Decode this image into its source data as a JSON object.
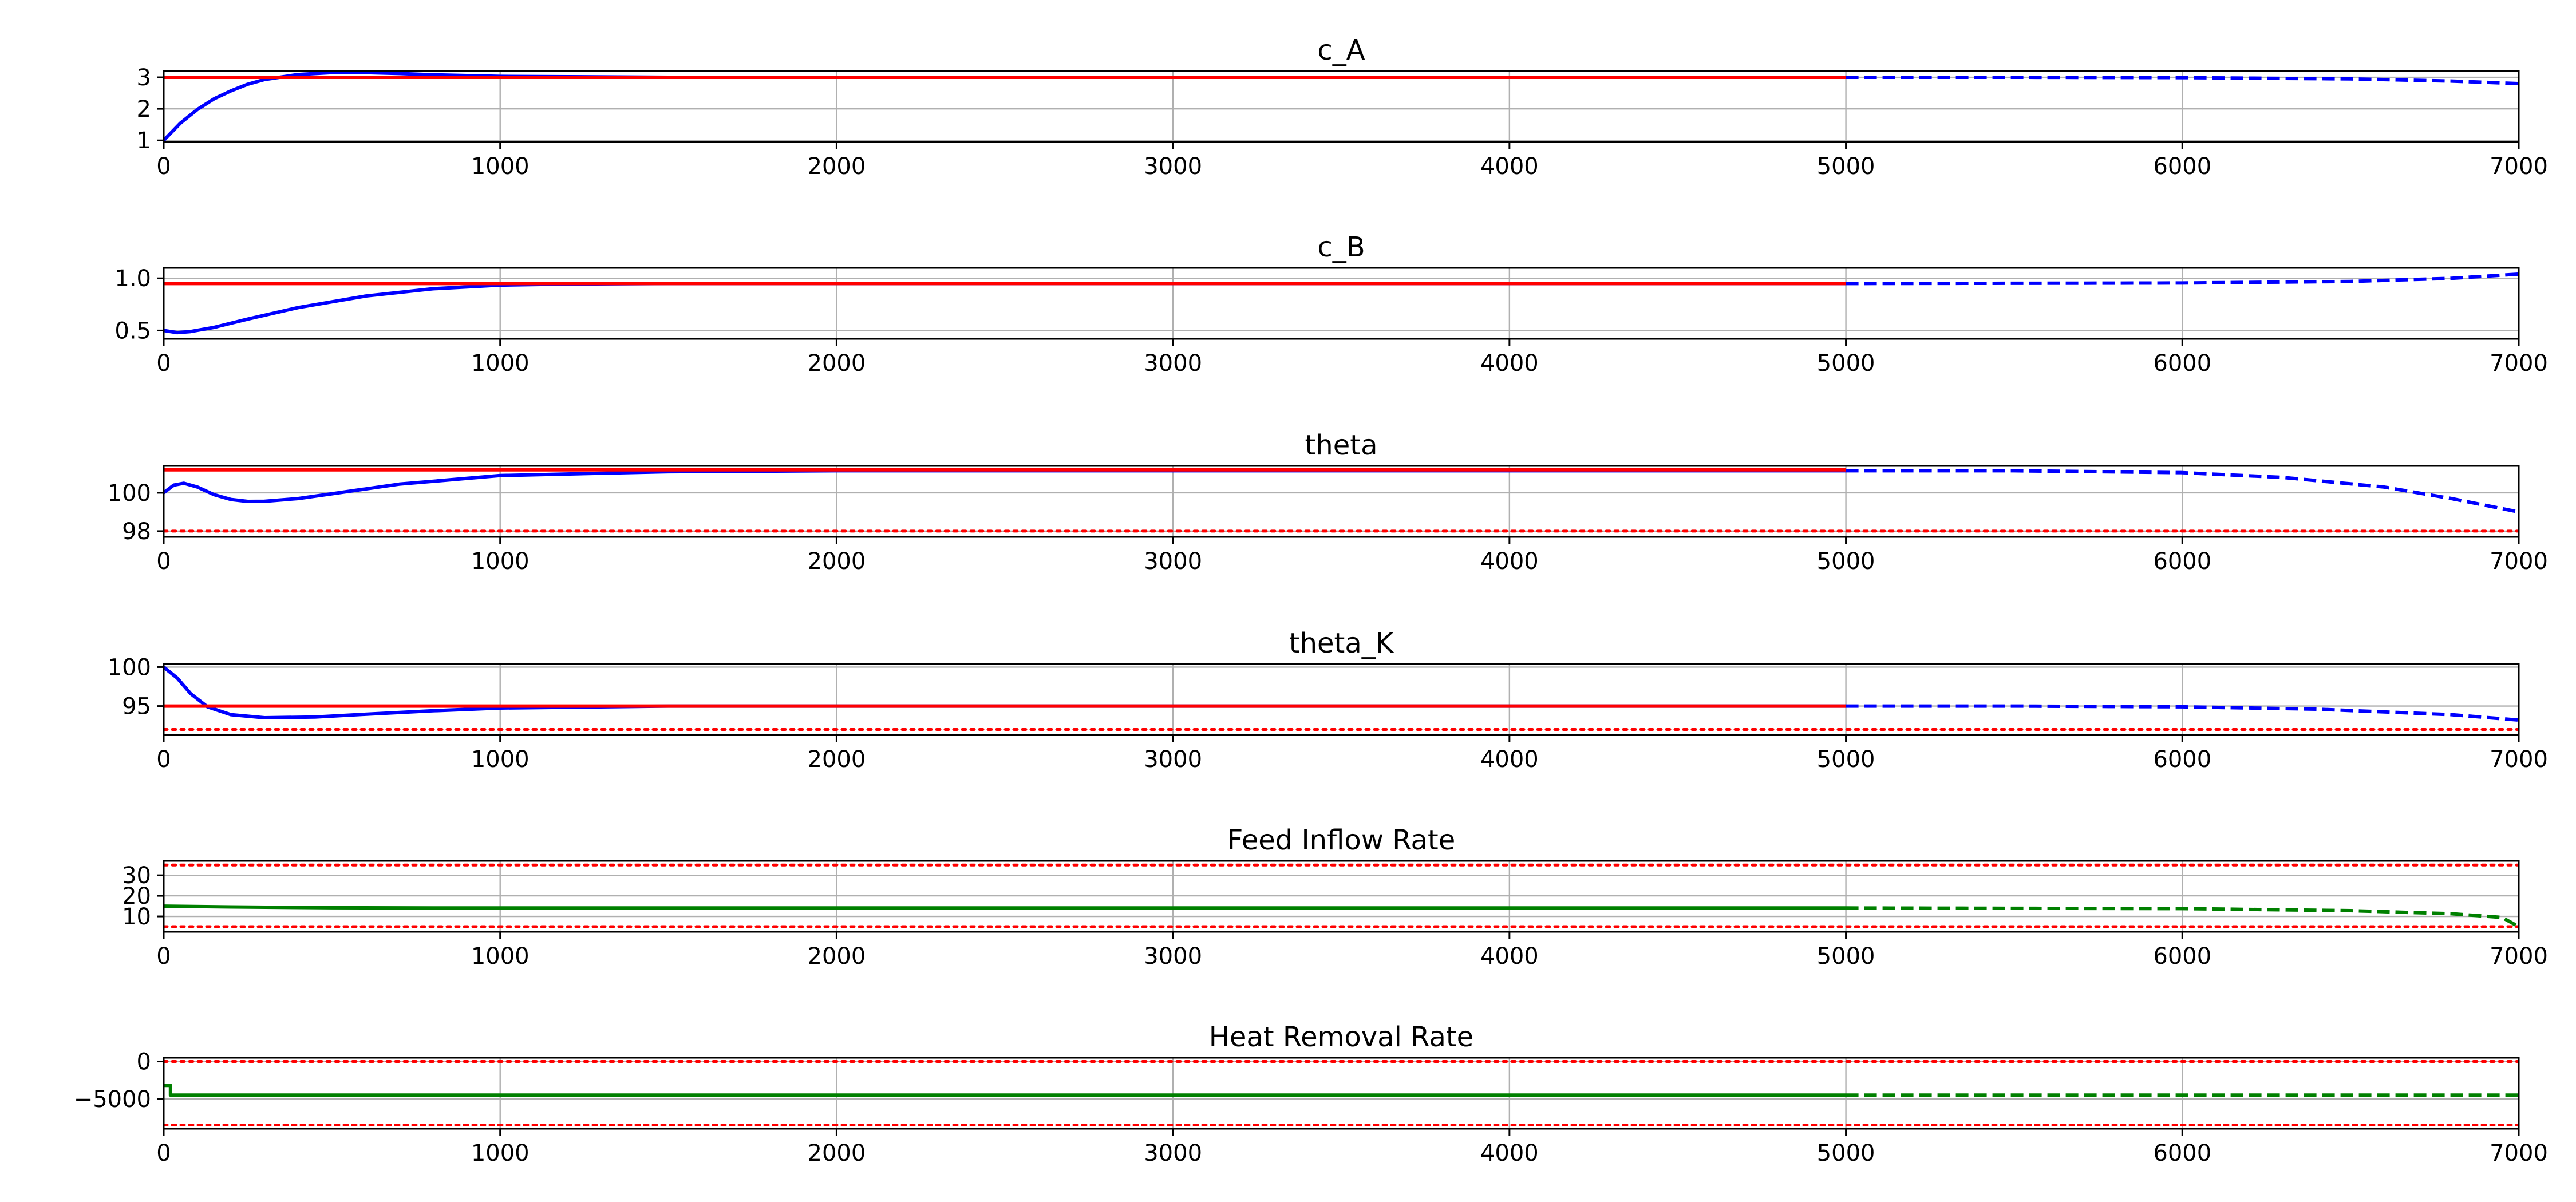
{
  "colors": {
    "state": "#0000ff",
    "input": "#008000",
    "setpoint": "#ff0000",
    "bound": "#ff0000",
    "grid": "#b0b0b0",
    "axes": "#000000"
  },
  "chart_data": [
    {
      "type": "line",
      "title": "c_A",
      "xlim": [
        0,
        7000
      ],
      "ylim": [
        0.95,
        3.2
      ],
      "xticks": [
        0,
        1000,
        2000,
        3000,
        4000,
        5000,
        6000,
        7000
      ],
      "xtick_labels": [
        "0",
        "1000",
        "2000",
        "3000",
        "4000",
        "5000",
        "6000",
        "7000"
      ],
      "yticks": [
        1,
        2,
        3
      ],
      "ytick_labels": [
        "1",
        "2",
        "3"
      ],
      "grid": true,
      "series": [
        {
          "role": "state",
          "style": "solid",
          "x": [
            0,
            50,
            100,
            150,
            200,
            250,
            300,
            400,
            500,
            600,
            700,
            800,
            1000,
            1500,
            2000,
            5000
          ],
          "y": [
            1.0,
            1.55,
            1.98,
            2.32,
            2.57,
            2.78,
            2.93,
            3.09,
            3.15,
            3.15,
            3.12,
            3.08,
            3.03,
            3.0,
            3.0,
            3.0
          ]
        },
        {
          "role": "state",
          "style": "dashed",
          "x": [
            5000,
            5500,
            6000,
            6500,
            6800,
            7000
          ],
          "y": [
            3.0,
            3.0,
            2.99,
            2.95,
            2.88,
            2.8
          ]
        },
        {
          "role": "setpoint",
          "style": "solid",
          "x": [
            0,
            5000
          ],
          "y": [
            3.0,
            3.0
          ]
        }
      ]
    },
    {
      "type": "line",
      "title": "c_B",
      "xlim": [
        0,
        7000
      ],
      "ylim": [
        0.42,
        1.1
      ],
      "xticks": [
        0,
        1000,
        2000,
        3000,
        4000,
        5000,
        6000,
        7000
      ],
      "xtick_labels": [
        "0",
        "1000",
        "2000",
        "3000",
        "4000",
        "5000",
        "6000",
        "7000"
      ],
      "yticks": [
        0.5,
        1.0
      ],
      "ytick_labels": [
        "0.5",
        "1.0"
      ],
      "grid": true,
      "series": [
        {
          "role": "state",
          "style": "solid",
          "x": [
            0,
            40,
            80,
            150,
            250,
            400,
            600,
            800,
            1000,
            1200,
            1500,
            2000,
            5000
          ],
          "y": [
            0.5,
            0.48,
            0.49,
            0.53,
            0.61,
            0.72,
            0.83,
            0.9,
            0.935,
            0.945,
            0.95,
            0.95,
            0.95
          ]
        },
        {
          "role": "state",
          "style": "dashed",
          "x": [
            5000,
            6000,
            6500,
            6800,
            7000
          ],
          "y": [
            0.95,
            0.955,
            0.97,
            1.0,
            1.04
          ]
        },
        {
          "role": "setpoint",
          "style": "solid",
          "x": [
            0,
            5000
          ],
          "y": [
            0.95,
            0.95
          ]
        }
      ]
    },
    {
      "type": "line",
      "title": "theta",
      "xlim": [
        0,
        7000
      ],
      "ylim": [
        97.7,
        101.4
      ],
      "xticks": [
        0,
        1000,
        2000,
        3000,
        4000,
        5000,
        6000,
        7000
      ],
      "xtick_labels": [
        "0",
        "1000",
        "2000",
        "3000",
        "4000",
        "5000",
        "6000",
        "7000"
      ],
      "yticks": [
        98,
        100
      ],
      "ytick_labels": [
        "98",
        "100"
      ],
      "grid": true,
      "series": [
        {
          "role": "state",
          "style": "solid",
          "x": [
            0,
            30,
            60,
            100,
            150,
            200,
            250,
            300,
            400,
            500,
            700,
            1000,
            1500,
            2000,
            5000
          ],
          "y": [
            100.0,
            100.4,
            100.5,
            100.3,
            99.9,
            99.65,
            99.55,
            99.56,
            99.7,
            99.95,
            100.45,
            100.9,
            101.1,
            101.15,
            101.15
          ]
        },
        {
          "role": "state",
          "style": "dashed",
          "x": [
            5000,
            5500,
            6000,
            6300,
            6600,
            6800,
            7000
          ],
          "y": [
            101.15,
            101.15,
            101.05,
            100.8,
            100.3,
            99.7,
            99.0
          ]
        },
        {
          "role": "setpoint",
          "style": "solid",
          "x": [
            0,
            5000
          ],
          "y": [
            101.2,
            101.2
          ]
        },
        {
          "role": "bound",
          "style": "dotted",
          "x": [
            0,
            7000
          ],
          "y": [
            98.0,
            98.0
          ]
        }
      ]
    },
    {
      "type": "line",
      "title": "theta_K",
      "xlim": [
        0,
        7000
      ],
      "ylim": [
        91.3,
        100.4
      ],
      "xticks": [
        0,
        1000,
        2000,
        3000,
        4000,
        5000,
        6000,
        7000
      ],
      "xtick_labels": [
        "0",
        "1000",
        "2000",
        "3000",
        "4000",
        "5000",
        "6000",
        "7000"
      ],
      "yticks": [
        95,
        100
      ],
      "ytick_labels": [
        "95",
        "100"
      ],
      "grid": true,
      "series": [
        {
          "role": "state",
          "style": "solid",
          "x": [
            0,
            40,
            80,
            130,
            200,
            300,
            450,
            600,
            800,
            1000,
            1500,
            2000,
            5000
          ],
          "y": [
            100.0,
            98.6,
            96.6,
            94.9,
            93.9,
            93.5,
            93.6,
            93.95,
            94.4,
            94.75,
            95.0,
            95.0,
            95.0
          ]
        },
        {
          "role": "state",
          "style": "dashed",
          "x": [
            5000,
            5500,
            6000,
            6400,
            6800,
            7000
          ],
          "y": [
            95.0,
            95.0,
            94.9,
            94.6,
            93.9,
            93.2
          ]
        },
        {
          "role": "setpoint",
          "style": "solid",
          "x": [
            0,
            5000
          ],
          "y": [
            95.0,
            95.0
          ]
        },
        {
          "role": "bound",
          "style": "dotted",
          "x": [
            0,
            7000
          ],
          "y": [
            92.0,
            92.0
          ]
        }
      ]
    },
    {
      "type": "line",
      "title": "Feed Inflow Rate",
      "xlim": [
        0,
        7000
      ],
      "ylim": [
        2.5,
        37
      ],
      "xticks": [
        0,
        1000,
        2000,
        3000,
        4000,
        5000,
        6000,
        7000
      ],
      "xtick_labels": [
        "0",
        "1000",
        "2000",
        "3000",
        "4000",
        "5000",
        "6000",
        "7000"
      ],
      "yticks": [
        10,
        20,
        30
      ],
      "ytick_labels": [
        "10",
        "20",
        "30"
      ],
      "grid": true,
      "series": [
        {
          "role": "input",
          "style": "solid",
          "x": [
            0,
            200,
            500,
            800,
            1500,
            5000
          ],
          "y": [
            15.0,
            14.6,
            14.2,
            14.1,
            14.1,
            14.1
          ]
        },
        {
          "role": "input",
          "style": "dashed",
          "x": [
            5000,
            6000,
            6500,
            6800,
            6950,
            7000
          ],
          "y": [
            14.1,
            13.8,
            12.8,
            11.3,
            9.5,
            5.0
          ]
        },
        {
          "role": "bound",
          "style": "dotted",
          "x": [
            0,
            7000
          ],
          "y": [
            35.0,
            35.0
          ]
        },
        {
          "role": "bound",
          "style": "dotted",
          "x": [
            0,
            7000
          ],
          "y": [
            5.0,
            5.0
          ]
        }
      ]
    },
    {
      "type": "line",
      "title": "Heat Removal Rate",
      "xlim": [
        0,
        7000
      ],
      "ylim": [
        -9000,
        500
      ],
      "xticks": [
        0,
        1000,
        2000,
        3000,
        4000,
        5000,
        6000,
        7000
      ],
      "xtick_labels": [
        "0",
        "1000",
        "2000",
        "3000",
        "4000",
        "5000",
        "6000",
        "7000"
      ],
      "yticks": [
        -5000,
        0
      ],
      "ytick_labels": [
        "−5000",
        "0"
      ],
      "grid": true,
      "series": [
        {
          "role": "input",
          "style": "solid",
          "x": [
            0,
            20,
            20,
            5000
          ],
          "y": [
            -3200,
            -3200,
            -4500,
            -4500
          ]
        },
        {
          "role": "input",
          "style": "dashed",
          "x": [
            5000,
            7000
          ],
          "y": [
            -4500,
            -4500
          ]
        },
        {
          "role": "bound",
          "style": "dotted",
          "x": [
            0,
            7000
          ],
          "y": [
            0,
            0
          ]
        },
        {
          "role": "bound",
          "style": "dotted",
          "x": [
            0,
            7000
          ],
          "y": [
            -8500,
            -8500
          ]
        }
      ]
    }
  ]
}
